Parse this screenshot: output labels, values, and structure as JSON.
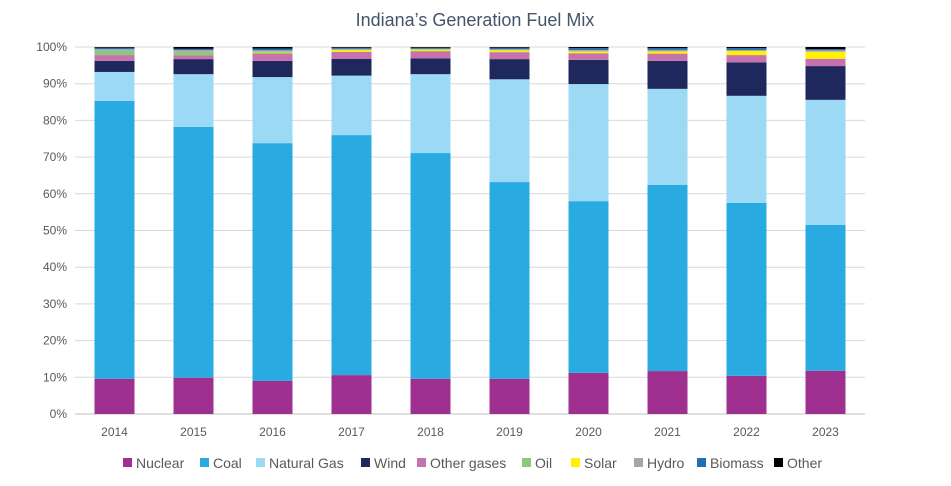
{
  "chart_data": {
    "type": "bar",
    "stacked": true,
    "title": "Indiana’s Generation Fuel Mix",
    "xlabel": "",
    "ylabel": "",
    "ylim": [
      0,
      100
    ],
    "yticks": [
      "0%",
      "10%",
      "20%",
      "30%",
      "40%",
      "50%",
      "60%",
      "70%",
      "80%",
      "90%",
      "100%"
    ],
    "grid": true,
    "legend_position": "bottom",
    "categories": [
      "2014",
      "2015",
      "2016",
      "2017",
      "2018",
      "2019",
      "2020",
      "2021",
      "2022",
      "2023"
    ],
    "series": [
      {
        "name": "Nuclear",
        "color": "#A0308F",
        "values": [
          9.6,
          9.9,
          9.0,
          10.6,
          9.6,
          9.6,
          11.2,
          11.7,
          10.4,
          11.8
        ]
      },
      {
        "name": "Coal",
        "color": "#29ABE2",
        "values": [
          75.7,
          68.3,
          64.8,
          65.4,
          61.5,
          53.6,
          46.8,
          50.7,
          47.1,
          39.7
        ]
      },
      {
        "name": "Natural Gas",
        "color": "#9BD9F4",
        "values": [
          7.9,
          14.4,
          18.0,
          16.2,
          21.5,
          28.0,
          31.9,
          26.2,
          29.2,
          34.1
        ]
      },
      {
        "name": "Wind",
        "color": "#1F285C",
        "values": [
          3.0,
          4.1,
          4.4,
          4.6,
          4.3,
          5.5,
          6.6,
          7.6,
          9.1,
          9.2
        ]
      },
      {
        "name": "Other gases",
        "color": "#C572AE",
        "values": [
          1.6,
          1.0,
          1.9,
          1.9,
          1.9,
          1.9,
          1.8,
          2.0,
          2.0,
          2.0
        ]
      },
      {
        "name": "Oil",
        "color": "#8DC97A",
        "values": [
          1.2,
          1.0,
          0.4,
          0.0,
          0.1,
          0.0,
          0.0,
          0.0,
          0.0,
          0.0
        ]
      },
      {
        "name": "Solar",
        "color": "#FFF200",
        "values": [
          0.0,
          0.0,
          0.2,
          0.5,
          0.4,
          0.5,
          0.5,
          0.6,
          1.1,
          1.9
        ]
      },
      {
        "name": "Hydro",
        "color": "#A6A6A6",
        "values": [
          0.4,
          0.5,
          0.4,
          0.3,
          0.2,
          0.3,
          0.4,
          0.4,
          0.3,
          0.4
        ]
      },
      {
        "name": "Biomass",
        "color": "#1F6FB5",
        "values": [
          0.4,
          0.3,
          0.5,
          0.3,
          0.3,
          0.4,
          0.5,
          0.5,
          0.5,
          0.3
        ]
      },
      {
        "name": "Other",
        "color": "#000000",
        "values": [
          0.2,
          0.5,
          0.4,
          0.2,
          0.2,
          0.2,
          0.3,
          0.3,
          0.3,
          0.6
        ]
      }
    ]
  }
}
